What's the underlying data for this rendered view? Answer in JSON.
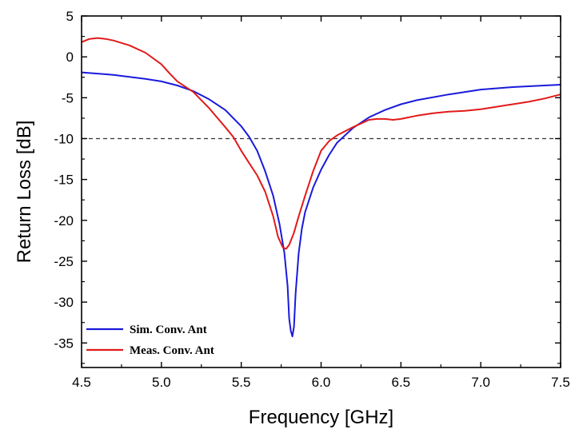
{
  "chart_data": {
    "type": "line",
    "title": "",
    "xlabel": "Frequency [GHz]",
    "ylabel": "Return Loss [dB]",
    "xlim": [
      4.5,
      7.5
    ],
    "ylim": [
      -38,
      5
    ],
    "x_ticks": [
      4.5,
      5.0,
      5.5,
      6.0,
      6.5,
      7.0,
      7.5
    ],
    "x_tick_labels": [
      "4.5",
      "5.0",
      "5.5",
      "6.0",
      "6.5",
      "7.0",
      "7.5"
    ],
    "y_ticks": [
      5,
      0,
      -5,
      -10,
      -15,
      -20,
      -25,
      -30,
      -35
    ],
    "y_tick_labels": [
      "5",
      "0",
      "-5",
      "-10",
      "-15",
      "-20",
      "-25",
      "-30",
      "-35"
    ],
    "grid": false,
    "legend_position": "bottom-left",
    "reference_line": {
      "y": -10,
      "style": "dashed",
      "color": "#333333"
    },
    "series": [
      {
        "name": "Sim. Conv. Ant",
        "color": "#1a1adc",
        "x": [
          4.5,
          4.7,
          4.9,
          5.0,
          5.1,
          5.2,
          5.3,
          5.4,
          5.5,
          5.55,
          5.6,
          5.65,
          5.7,
          5.74,
          5.77,
          5.79,
          5.8,
          5.81,
          5.82,
          5.83,
          5.84,
          5.86,
          5.88,
          5.9,
          5.95,
          6.0,
          6.05,
          6.1,
          6.2,
          6.3,
          6.4,
          6.5,
          6.6,
          6.8,
          7.0,
          7.2,
          7.5
        ],
        "y": [
          -1.9,
          -2.2,
          -2.7,
          -3.0,
          -3.5,
          -4.2,
          -5.2,
          -6.5,
          -8.5,
          -9.8,
          -11.5,
          -14.0,
          -17.0,
          -20.5,
          -24.0,
          -28.0,
          -32.0,
          -33.5,
          -34.2,
          -33.0,
          -29.0,
          -24.0,
          -21.0,
          -19.0,
          -16.0,
          -13.8,
          -12.0,
          -10.5,
          -8.7,
          -7.4,
          -6.5,
          -5.8,
          -5.3,
          -4.6,
          -4.0,
          -3.7,
          -3.4
        ]
      },
      {
        "name": "Meas. Conv. Ant",
        "color": "#e11a1a",
        "x": [
          4.5,
          4.55,
          4.6,
          4.65,
          4.7,
          4.8,
          4.9,
          5.0,
          5.05,
          5.1,
          5.2,
          5.3,
          5.4,
          5.45,
          5.5,
          5.55,
          5.6,
          5.65,
          5.7,
          5.73,
          5.76,
          5.78,
          5.8,
          5.83,
          5.86,
          5.9,
          5.95,
          6.0,
          6.05,
          6.1,
          6.2,
          6.3,
          6.35,
          6.4,
          6.45,
          6.5,
          6.6,
          6.7,
          6.8,
          6.9,
          7.0,
          7.1,
          7.2,
          7.3,
          7.4,
          7.5
        ],
        "y": [
          1.8,
          2.2,
          2.3,
          2.2,
          2.0,
          1.4,
          0.5,
          -0.9,
          -2.0,
          -3.0,
          -4.3,
          -6.3,
          -8.6,
          -9.8,
          -11.5,
          -13.0,
          -14.5,
          -16.5,
          -19.5,
          -22.0,
          -23.3,
          -23.5,
          -23.0,
          -21.5,
          -19.5,
          -17.0,
          -14.0,
          -11.5,
          -10.3,
          -9.6,
          -8.6,
          -7.7,
          -7.6,
          -7.6,
          -7.7,
          -7.6,
          -7.2,
          -6.9,
          -6.7,
          -6.6,
          -6.4,
          -6.1,
          -5.8,
          -5.5,
          -5.1,
          -4.6
        ]
      }
    ]
  }
}
